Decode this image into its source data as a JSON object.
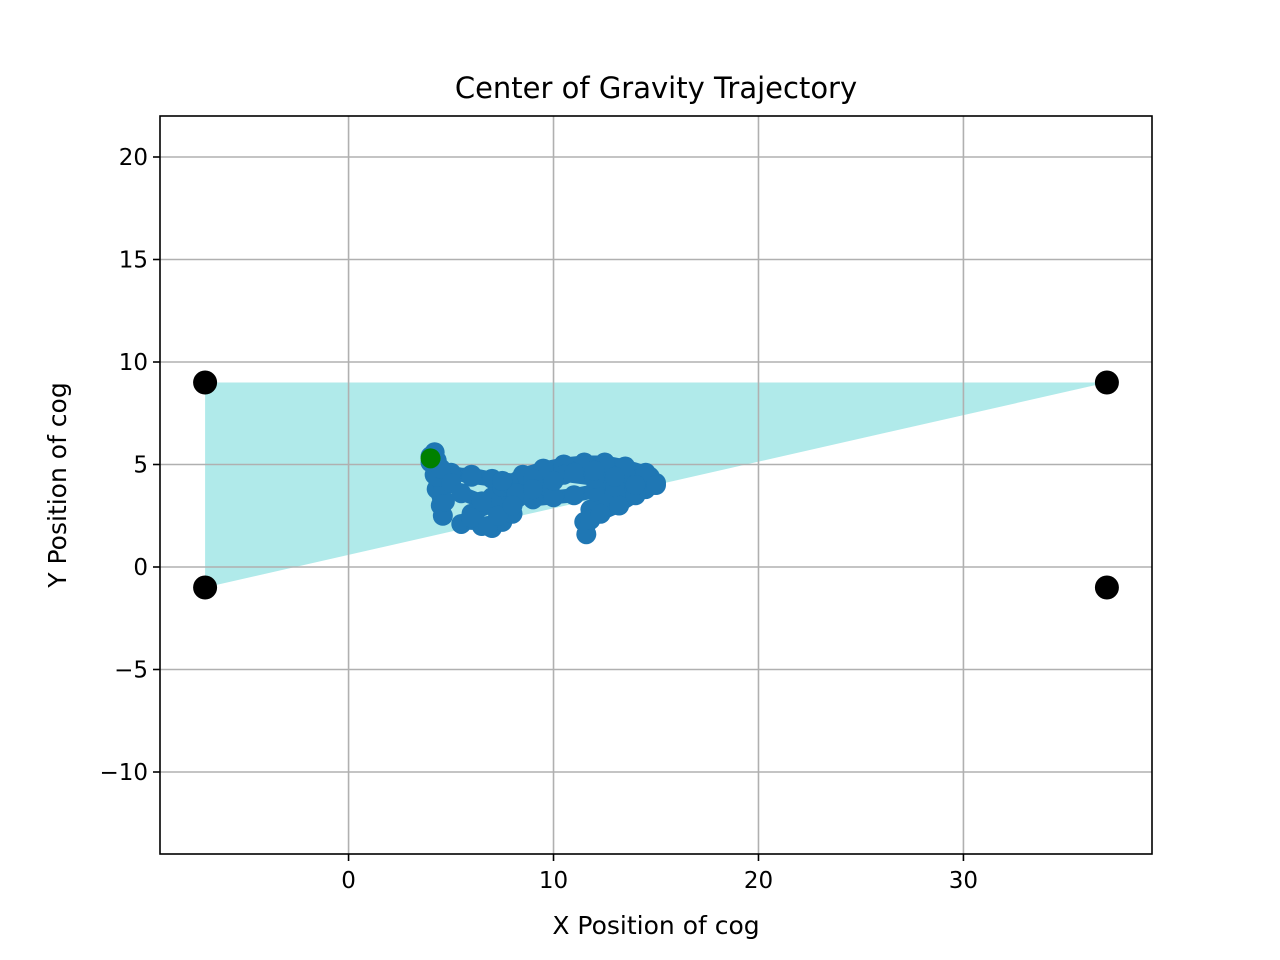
{
  "chart_data": {
    "type": "scatter",
    "title": "Center of Gravity Trajectory",
    "xlabel": "X Position of cog",
    "ylabel": "Y Position of cog",
    "xlim": [
      -9.2,
      39.2
    ],
    "ylim": [
      -14,
      22
    ],
    "xticks": [
      0,
      10,
      20,
      30
    ],
    "xtick_labels": [
      "0",
      "10",
      "20",
      "30"
    ],
    "yticks": [
      -10,
      -5,
      0,
      5,
      10,
      15,
      20
    ],
    "ytick_labels": [
      "−10",
      "−5",
      "0",
      "5",
      "10",
      "15",
      "20"
    ],
    "grid": true,
    "legend": "none",
    "support_polygon": {
      "color": "#b0eaea",
      "points": [
        [
          -7,
          9
        ],
        [
          37,
          9
        ],
        [
          -7,
          -1
        ]
      ]
    },
    "corner_points": {
      "color": "#000000",
      "points": [
        [
          -7,
          9
        ],
        [
          37,
          9
        ],
        [
          -7,
          -1
        ],
        [
          37,
          -1
        ]
      ]
    },
    "trajectory": {
      "color": "#1f77b4",
      "points": [
        [
          4.0,
          5.4
        ],
        [
          4.2,
          5.6
        ],
        [
          4.3,
          5.2
        ],
        [
          4.2,
          4.5
        ],
        [
          4.3,
          3.8
        ],
        [
          4.5,
          3.0
        ],
        [
          4.6,
          2.5
        ],
        [
          4.7,
          3.2
        ],
        [
          4.6,
          4.0
        ],
        [
          4.3,
          4.8
        ],
        [
          4.0,
          5.1
        ],
        [
          4.3,
          4.4
        ],
        [
          5.0,
          4.5
        ],
        [
          6.0,
          4.5
        ],
        [
          7.0,
          4.3
        ],
        [
          8.0,
          4.0
        ],
        [
          8.5,
          3.6
        ],
        [
          8.0,
          3.2
        ],
        [
          7.0,
          3.0
        ],
        [
          6.0,
          2.6
        ],
        [
          5.5,
          2.1
        ],
        [
          6.0,
          2.3
        ],
        [
          6.5,
          2.0
        ],
        [
          7.0,
          1.9
        ],
        [
          7.5,
          2.2
        ],
        [
          8.0,
          2.6
        ],
        [
          7.5,
          3.0
        ],
        [
          7.0,
          3.4
        ],
        [
          7.5,
          3.9
        ],
        [
          8.5,
          4.3
        ],
        [
          9.5,
          4.6
        ],
        [
          10.5,
          4.8
        ],
        [
          11.5,
          4.9
        ],
        [
          12.5,
          4.8
        ],
        [
          13.5,
          4.6
        ],
        [
          14.2,
          4.3
        ],
        [
          14.7,
          4.4
        ],
        [
          15.0,
          4.1
        ],
        [
          14.5,
          3.8
        ],
        [
          13.5,
          3.5
        ],
        [
          12.5,
          3.2
        ],
        [
          11.8,
          2.8
        ],
        [
          11.5,
          2.2
        ],
        [
          11.6,
          1.6
        ],
        [
          11.8,
          2.3
        ],
        [
          12.3,
          2.6
        ],
        [
          13.2,
          3.0
        ],
        [
          14.0,
          3.5
        ],
        [
          14.8,
          4.0
        ],
        [
          14.5,
          4.6
        ],
        [
          13.5,
          4.9
        ],
        [
          12.5,
          5.1
        ],
        [
          11.5,
          5.1
        ],
        [
          10.5,
          5.0
        ],
        [
          9.5,
          4.8
        ],
        [
          8.5,
          4.5
        ],
        [
          7.8,
          4.1
        ],
        [
          8.2,
          3.6
        ],
        [
          9.0,
          3.3
        ],
        [
          10.0,
          3.4
        ],
        [
          11.0,
          3.5
        ],
        [
          12.0,
          3.7
        ],
        [
          13.0,
          3.9
        ],
        [
          12.0,
          4.3
        ],
        [
          10.5,
          4.5
        ],
        [
          9.0,
          4.3
        ],
        [
          7.5,
          4.2
        ],
        [
          6.0,
          4.4
        ],
        [
          5.0,
          4.6
        ],
        [
          4.5,
          4.8
        ],
        [
          5.0,
          4.1
        ],
        [
          5.5,
          3.6
        ],
        [
          6.5,
          3.2
        ],
        [
          6.0,
          2.4
        ],
        [
          6.8,
          2.0
        ],
        [
          7.3,
          2.5
        ],
        [
          8.0,
          3.0
        ],
        [
          9.0,
          3.8
        ],
        [
          10.0,
          4.2
        ],
        [
          11.0,
          4.6
        ],
        [
          12.0,
          4.7
        ],
        [
          13.0,
          4.4
        ],
        [
          14.0,
          4.0
        ],
        [
          15.0,
          4.0
        ]
      ]
    },
    "start_point": {
      "color": "#008000",
      "x": 4.0,
      "y": 5.3
    }
  }
}
